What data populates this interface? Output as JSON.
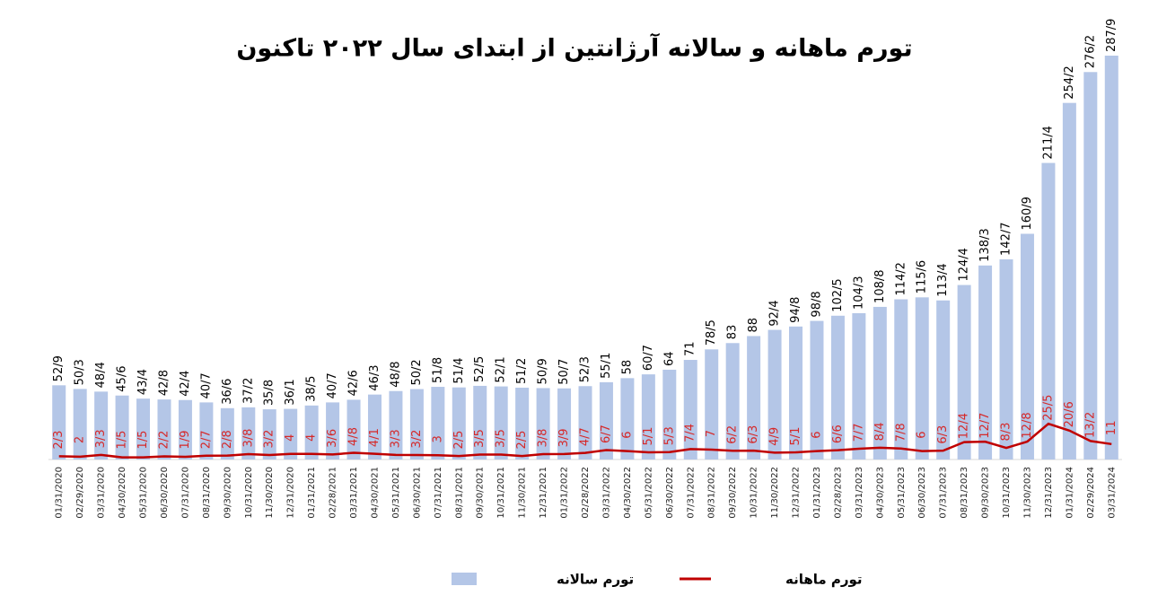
{
  "chart_data": {
    "type": "bar_line",
    "title": "تورم ماهانه و سالانه آرژانتین از ابتدای سال ۲۰۲۲ تاکنون",
    "categories": [
      "01/31/2020",
      "02/29/2020",
      "03/31/2020",
      "04/30/2020",
      "05/31/2020",
      "06/30/2020",
      "07/31/2020",
      "08/31/2020",
      "09/30/2020",
      "10/31/2020",
      "11/30/2020",
      "12/31/2020",
      "01/31/2021",
      "02/28/2021",
      "03/31/2021",
      "04/30/2021",
      "05/31/2021",
      "06/30/2021",
      "07/31/2021",
      "08/31/2021",
      "09/30/2021",
      "10/31/2021",
      "11/30/2021",
      "12/31/2021",
      "01/31/2022",
      "02/28/2022",
      "03/31/2022",
      "04/30/2022",
      "05/31/2022",
      "06/30/2022",
      "07/31/2022",
      "08/31/2022",
      "09/30/2022",
      "10/31/2022",
      "11/30/2022",
      "12/31/2022",
      "01/31/2023",
      "02/28/2023",
      "03/31/2023",
      "04/30/2023",
      "05/31/2023",
      "06/30/2023",
      "07/31/2023",
      "08/31/2023",
      "09/30/2023",
      "10/31/2023",
      "11/30/2023",
      "12/31/2023",
      "01/31/2024",
      "02/29/2024",
      "03/31/2024"
    ],
    "series": [
      {
        "name": "تورم سالانه",
        "type": "bar",
        "color": "#b4c6e7",
        "values": [
          52.9,
          50.3,
          48.4,
          45.6,
          43.4,
          42.8,
          42.4,
          40.7,
          36.6,
          37.2,
          35.8,
          36.1,
          38.5,
          40.7,
          42.6,
          46.3,
          48.8,
          50.2,
          51.8,
          51.4,
          52.5,
          52.1,
          51.2,
          50.9,
          50.7,
          52.3,
          55.1,
          58,
          60.7,
          64,
          71,
          78.5,
          83,
          88,
          92.4,
          94.8,
          98.8,
          102.5,
          104.3,
          108.8,
          114.2,
          115.6,
          113.4,
          124.4,
          138.3,
          142.7,
          160.9,
          211.4,
          254.2,
          276.2,
          287.9
        ],
        "value_labels": [
          "52/9",
          "50/3",
          "48/4",
          "45/6",
          "43/4",
          "42/8",
          "42/4",
          "40/7",
          "36/6",
          "37/2",
          "35/8",
          "36/1",
          "38/5",
          "40/7",
          "42/6",
          "46/3",
          "48/8",
          "50/2",
          "51/8",
          "51/4",
          "52/5",
          "52/1",
          "51/2",
          "50/9",
          "50/7",
          "52/3",
          "55/1",
          "58",
          "60/7",
          "64",
          "71",
          "78/5",
          "83",
          "88",
          "92/4",
          "94/8",
          "98/8",
          "102/5",
          "104/3",
          "108/8",
          "114/2",
          "115/6",
          "113/4",
          "124/4",
          "138/3",
          "142/7",
          "160/9",
          "211/4",
          "254/2",
          "276/2",
          "287/9"
        ]
      },
      {
        "name": "تورم ماهانه",
        "type": "line",
        "color": "#c00000",
        "values": [
          2.3,
          2,
          3.3,
          1.5,
          1.5,
          2.2,
          1.9,
          2.7,
          2.8,
          3.8,
          3.2,
          4,
          4,
          3.6,
          4.8,
          4.1,
          3.3,
          3.2,
          3,
          2.5,
          3.5,
          3.5,
          2.5,
          3.8,
          3.9,
          4.7,
          6.7,
          6,
          5.1,
          5.3,
          7.4,
          7,
          6.2,
          6.3,
          4.9,
          5.1,
          6,
          6.6,
          7.7,
          8.4,
          7.8,
          6,
          6.3,
          12.4,
          12.7,
          8.3,
          12.8,
          25.5,
          20.6,
          13.2,
          11
        ],
        "value_labels": [
          "2/3",
          "2",
          "3/3",
          "1/5",
          "1/5",
          "2/2",
          "1/9",
          "2/7",
          "2/8",
          "3/8",
          "3/2",
          "4",
          "4",
          "3/6",
          "4/8",
          "4/1",
          "3/3",
          "3/2",
          "3",
          "2/5",
          "3/5",
          "3/5",
          "2/5",
          "3/8",
          "3/9",
          "4/7",
          "6/7",
          "6",
          "5/1",
          "5/3",
          "7/4",
          "7",
          "6/2",
          "6/3",
          "4/9",
          "5/1",
          "6",
          "6/6",
          "7/7",
          "8/4",
          "7/8",
          "6",
          "6/3",
          "12/4",
          "12/7",
          "8/3",
          "12/8",
          "25/5",
          "20/6",
          "13/2",
          "11"
        ]
      }
    ]
  }
}
